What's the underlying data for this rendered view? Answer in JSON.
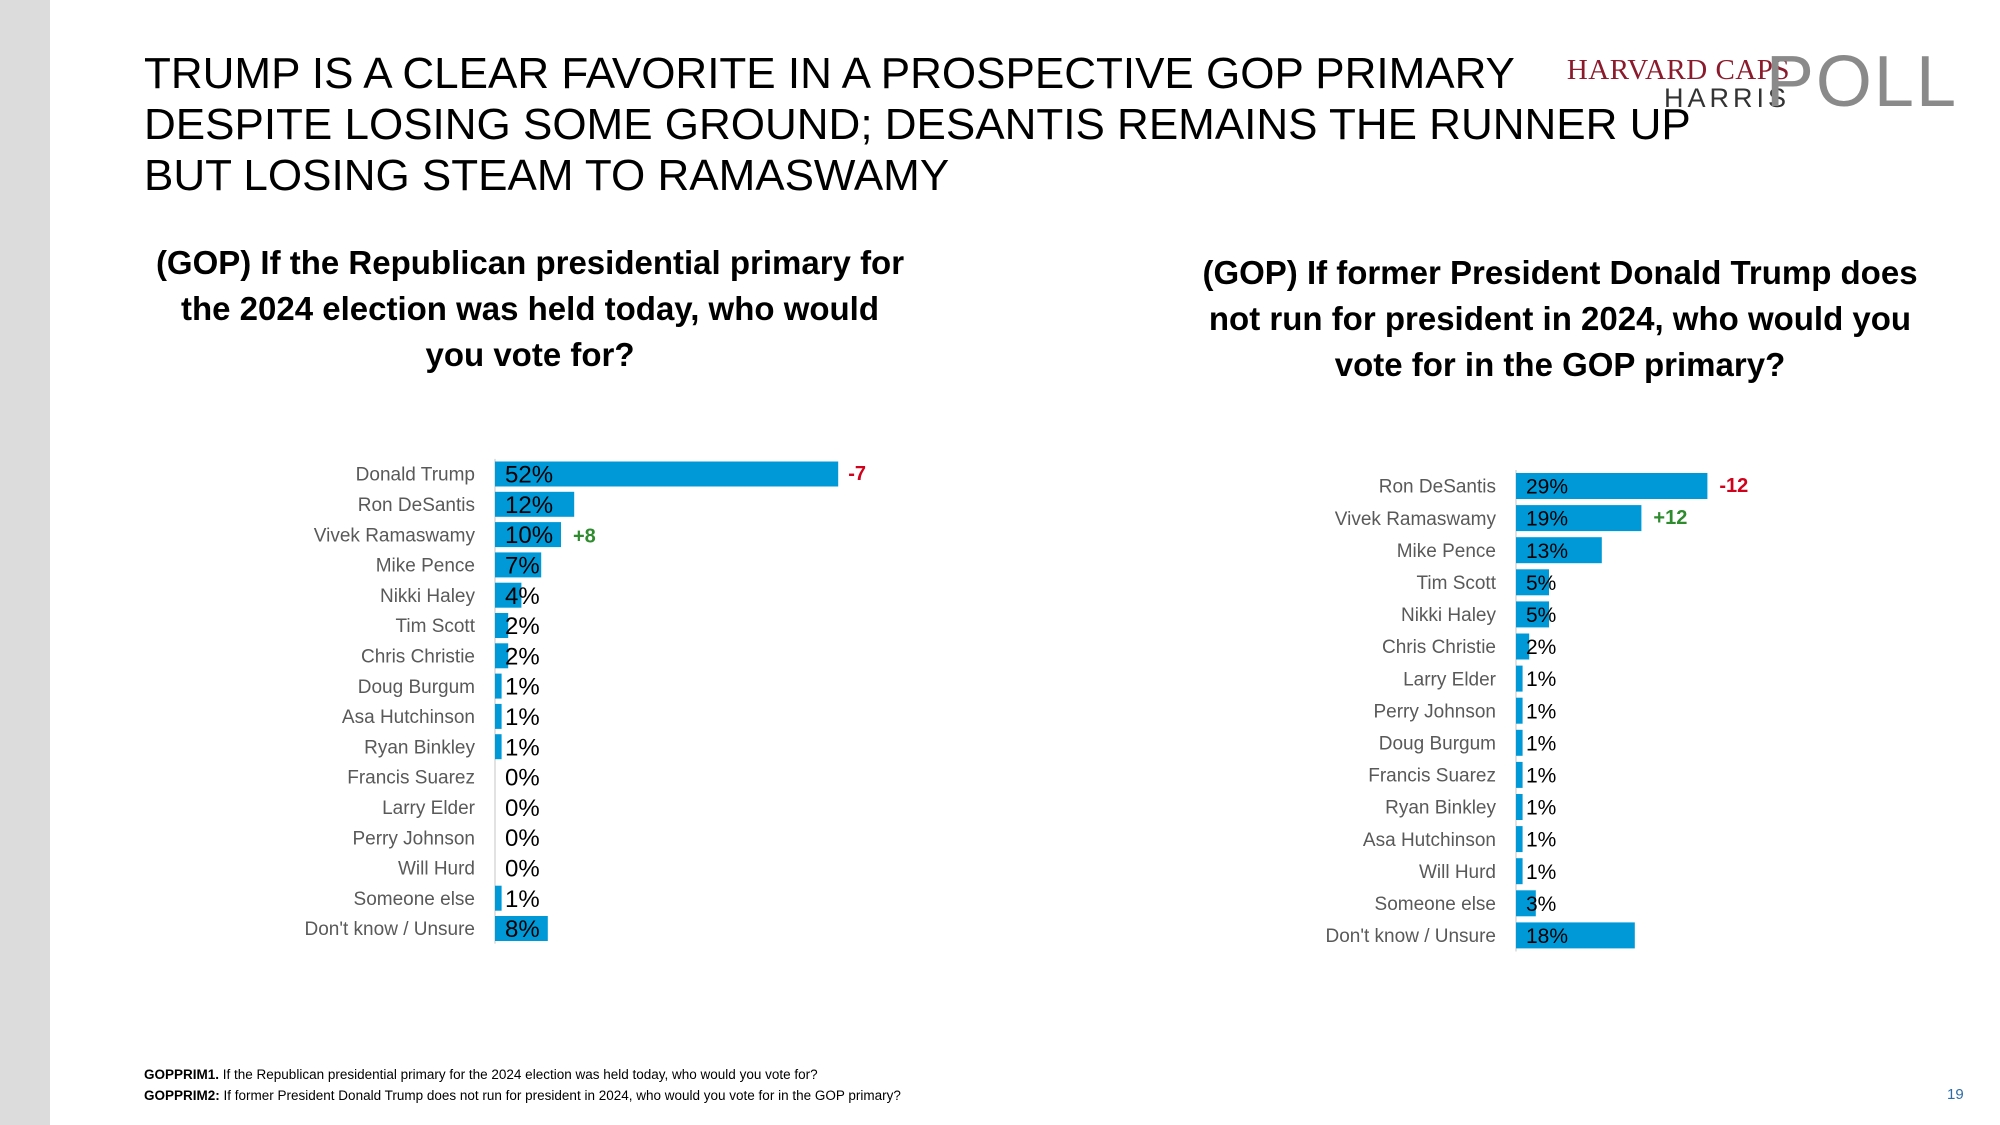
{
  "headline": {
    "line1": "TRUMP IS A CLEAR FAVORITE IN A PROSPECTIVE GOP PRIMARY",
    "line2": "DESPITE LOSING SOME GROUND; DESANTIS REMAINS THE RUNNER UP",
    "line3": "BUT LOSING STEAM TO RAMASWAMY"
  },
  "logo": {
    "top": "HARVARD CAPS",
    "bottom": "HARRIS",
    "poll": "POLL",
    "colors": {
      "top": "#8b1b2c",
      "bottom": "#333333",
      "poll": "#8a8a8a"
    }
  },
  "colors": {
    "bar": "#0099d8",
    "negative_change": "#d0021b",
    "positive_change": "#2e8b2e",
    "label": "#595959"
  },
  "chart_data": [
    {
      "type": "bar",
      "orientation": "horizontal",
      "title": "(GOP) If the Republican presidential primary for the 2024 election was held today, who would you vote for?",
      "categories": [
        "Donald Trump",
        "Ron DeSantis",
        "Vivek Ramaswamy",
        "Mike Pence",
        "Nikki Haley",
        "Tim Scott",
        "Chris Christie",
        "Doug Burgum",
        "Asa Hutchinson",
        "Ryan Binkley",
        "Francis Suarez",
        "Larry Elder",
        "Perry Johnson",
        "Will Hurd",
        "Someone else",
        "Don't know / Unsure"
      ],
      "values": [
        52,
        12,
        10,
        7,
        4,
        2,
        2,
        1,
        1,
        1,
        0,
        0,
        0,
        0,
        1,
        8
      ],
      "value_labels": [
        "52%",
        "12%",
        "10%",
        "7%",
        "4%",
        "2%",
        "2%",
        "1%",
        "1%",
        "1%",
        "0%",
        "0%",
        "0%",
        "0%",
        "1%",
        "8%"
      ],
      "changes": [
        {
          "category": "Donald Trump",
          "label": "-7",
          "direction": "negative"
        },
        {
          "category": "Vivek Ramaswamy",
          "label": "+8",
          "direction": "positive"
        }
      ],
      "xlim": [
        0,
        100
      ]
    },
    {
      "type": "bar",
      "orientation": "horizontal",
      "title": "(GOP) If former President Donald Trump does not run for president in 2024, who would you vote for in the GOP primary?",
      "categories": [
        "Ron DeSantis",
        "Vivek Ramaswamy",
        "Mike Pence",
        "Tim Scott",
        "Nikki Haley",
        "Chris Christie",
        "Larry Elder",
        "Perry Johnson",
        "Doug Burgum",
        "Francis Suarez",
        "Ryan Binkley",
        "Asa Hutchinson",
        "Will Hurd",
        "Someone else",
        "Don't know / Unsure"
      ],
      "values": [
        29,
        19,
        13,
        5,
        5,
        2,
        1,
        1,
        1,
        1,
        1,
        1,
        1,
        3,
        18
      ],
      "value_labels": [
        "29%",
        "19%",
        "13%",
        "5%",
        "5%",
        "2%",
        "1%",
        "1%",
        "1%",
        "1%",
        "1%",
        "1%",
        "1%",
        "3%",
        "18%"
      ],
      "changes": [
        {
          "category": "Ron DeSantis",
          "label": "-12",
          "direction": "negative"
        },
        {
          "category": "Vivek Ramaswamy",
          "label": "+12",
          "direction": "positive"
        }
      ],
      "xlim": [
        0,
        100
      ]
    }
  ],
  "footnotes": [
    {
      "code": "GOPPRIM1.",
      "text": " If the Republican presidential primary for the 2024 election was held today, who would you vote for?"
    },
    {
      "code": "GOPPRIM2:",
      "text": " If former President Donald Trump does not run for president in 2024, who would you vote for in the GOP primary?"
    }
  ],
  "page_number": "19"
}
